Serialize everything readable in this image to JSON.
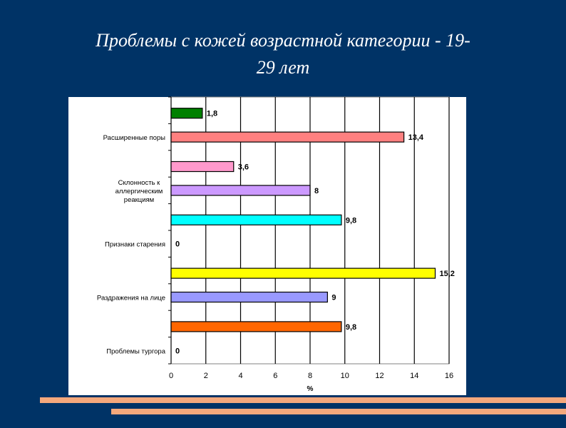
{
  "slide": {
    "title_line1": "Проблемы с кожей возрастной категории - 19-",
    "title_line2": "29 лет"
  },
  "colors": {
    "background": "#003366",
    "stripe": "#f4a87c"
  },
  "chart_data": {
    "type": "bar",
    "orientation": "horizontal",
    "xlabel": "%",
    "xlim": [
      0,
      16
    ],
    "xticks": [
      0,
      2,
      4,
      6,
      8,
      10,
      12,
      14,
      16
    ],
    "grid": true,
    "bars": [
      {
        "label": "",
        "value": 1.8,
        "value_label": "1,8",
        "color": "#008000"
      },
      {
        "label": "Расширенные поры",
        "value": 13.4,
        "value_label": "13,4",
        "color": "#ff8080"
      },
      {
        "label": "",
        "value": 3.6,
        "value_label": "3,6",
        "color": "#ff99cc"
      },
      {
        "label": "Склонность к аллергическим реакциям",
        "value": 8,
        "value_label": "8",
        "color": "#cc99ff"
      },
      {
        "label": "",
        "value": 9.8,
        "value_label": "9,8",
        "color": "#00ffff"
      },
      {
        "label": "Признаки старения",
        "value": 0,
        "value_label": "0",
        "color": "#808080"
      },
      {
        "label": "",
        "value": 15.2,
        "value_label": "15,2",
        "color": "#ffff00"
      },
      {
        "label": "Раздражения на лице",
        "value": 9,
        "value_label": "9",
        "color": "#9999ff"
      },
      {
        "label": "",
        "value": 9.8,
        "value_label": "9,8",
        "color": "#ff6600"
      },
      {
        "label": "Проблемы тургора",
        "value": 0,
        "value_label": "0",
        "color": "#808080"
      }
    ]
  }
}
